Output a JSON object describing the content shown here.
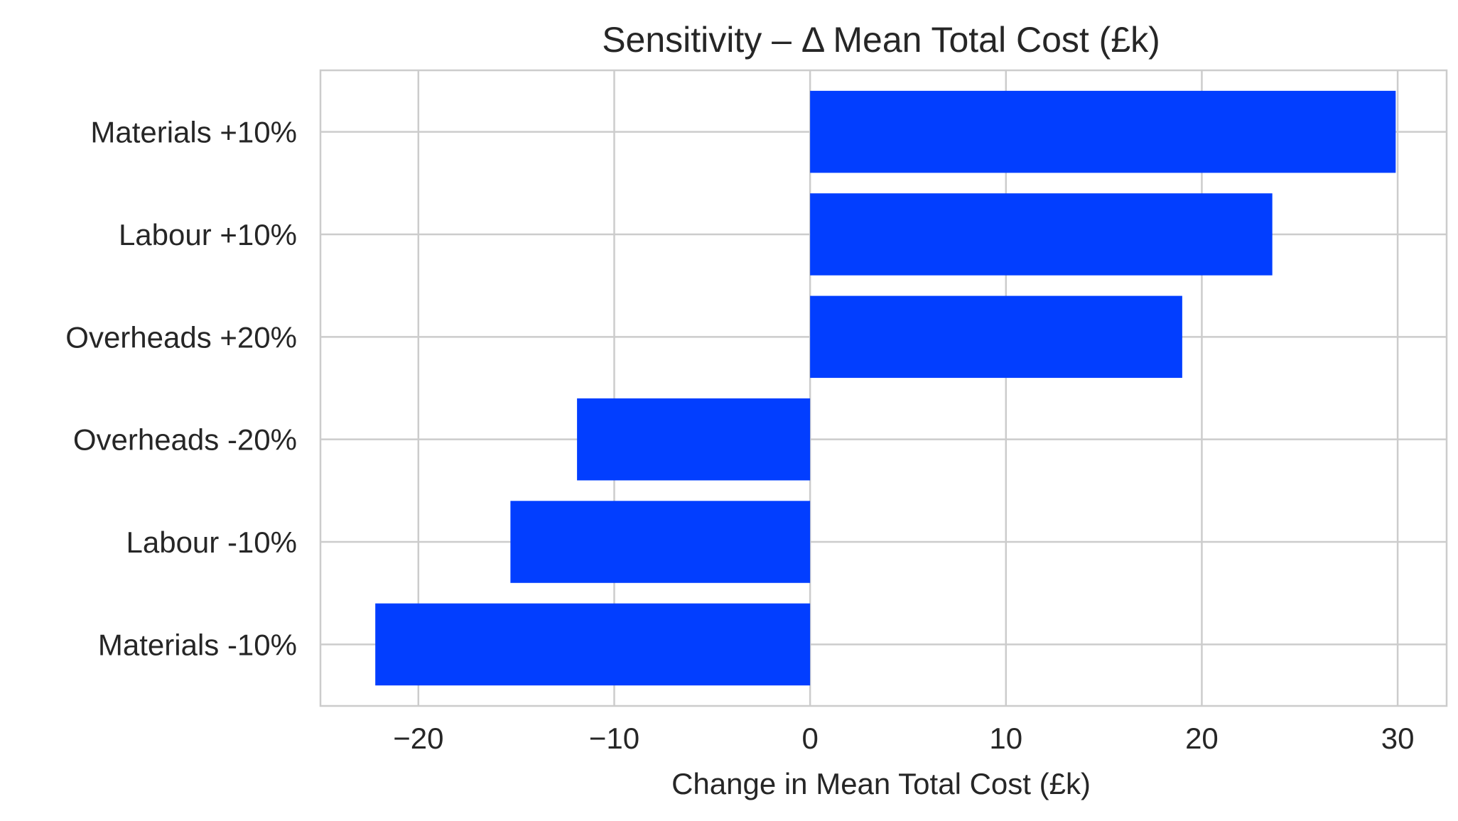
{
  "chart_data": {
    "type": "bar",
    "orientation": "horizontal",
    "title": "Sensitivity – Δ Mean Total Cost (£k)",
    "xlabel": "Change in Mean Total Cost (£k)",
    "ylabel": "",
    "xlim": [
      -25,
      32.5
    ],
    "xticks": [
      -20,
      -10,
      0,
      10,
      20,
      30
    ],
    "xtick_labels": [
      "−20",
      "−10",
      "0",
      "10",
      "20",
      "30"
    ],
    "categories": [
      "Materials +10%",
      "Labour +10%",
      "Overheads +20%",
      "Overheads -20%",
      "Labour -10%",
      "Materials -10%"
    ],
    "values": [
      29.9,
      23.6,
      19.0,
      -11.9,
      -15.3,
      -22.2
    ],
    "grid": true,
    "bar_color": "#023eff",
    "grid_color": "#cccccc",
    "spine_color": "#cccccc",
    "text_color": "#262626"
  }
}
